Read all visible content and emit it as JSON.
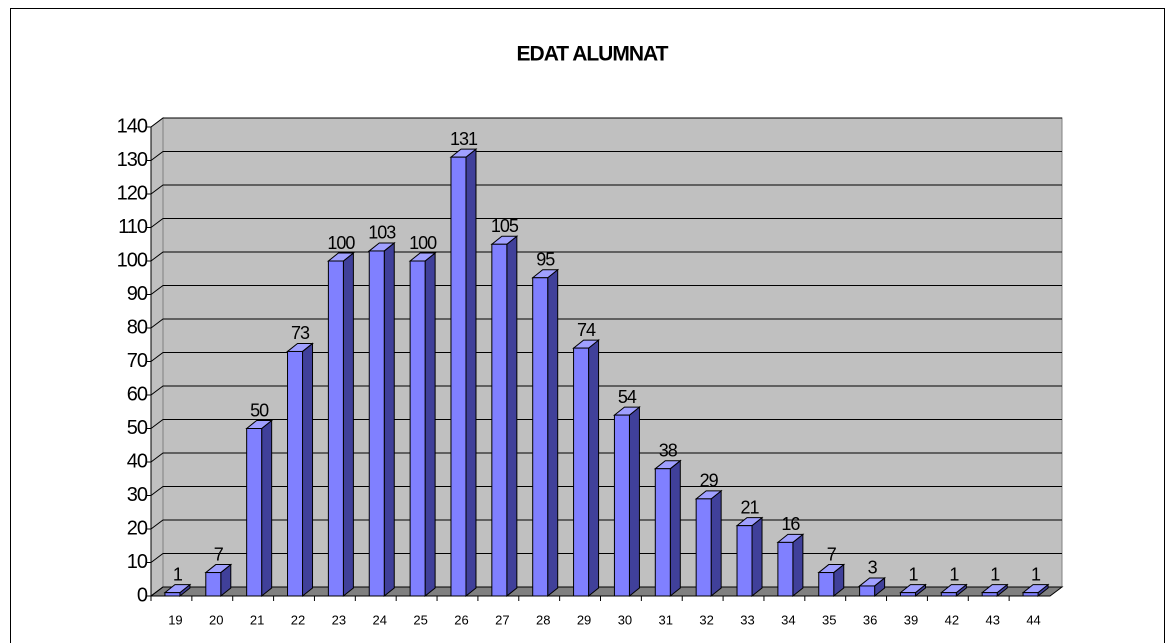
{
  "chart_data": {
    "type": "bar",
    "title": "EDAT ALUMNAT",
    "categories": [
      "19",
      "20",
      "21",
      "22",
      "23",
      "24",
      "25",
      "26",
      "27",
      "28",
      "29",
      "30",
      "31",
      "32",
      "33",
      "34",
      "35",
      "36",
      "39",
      "42",
      "43",
      "44"
    ],
    "values": [
      1,
      7,
      50,
      73,
      100,
      103,
      100,
      131,
      105,
      95,
      74,
      54,
      38,
      29,
      21,
      16,
      7,
      3,
      1,
      1,
      1,
      1
    ],
    "color": "#8080ff",
    "ylim": [
      0,
      140
    ],
    "yticks": [
      0,
      10,
      20,
      30,
      40,
      50,
      60,
      70,
      80,
      90,
      100,
      110,
      120,
      130,
      140
    ],
    "grid": true
  }
}
